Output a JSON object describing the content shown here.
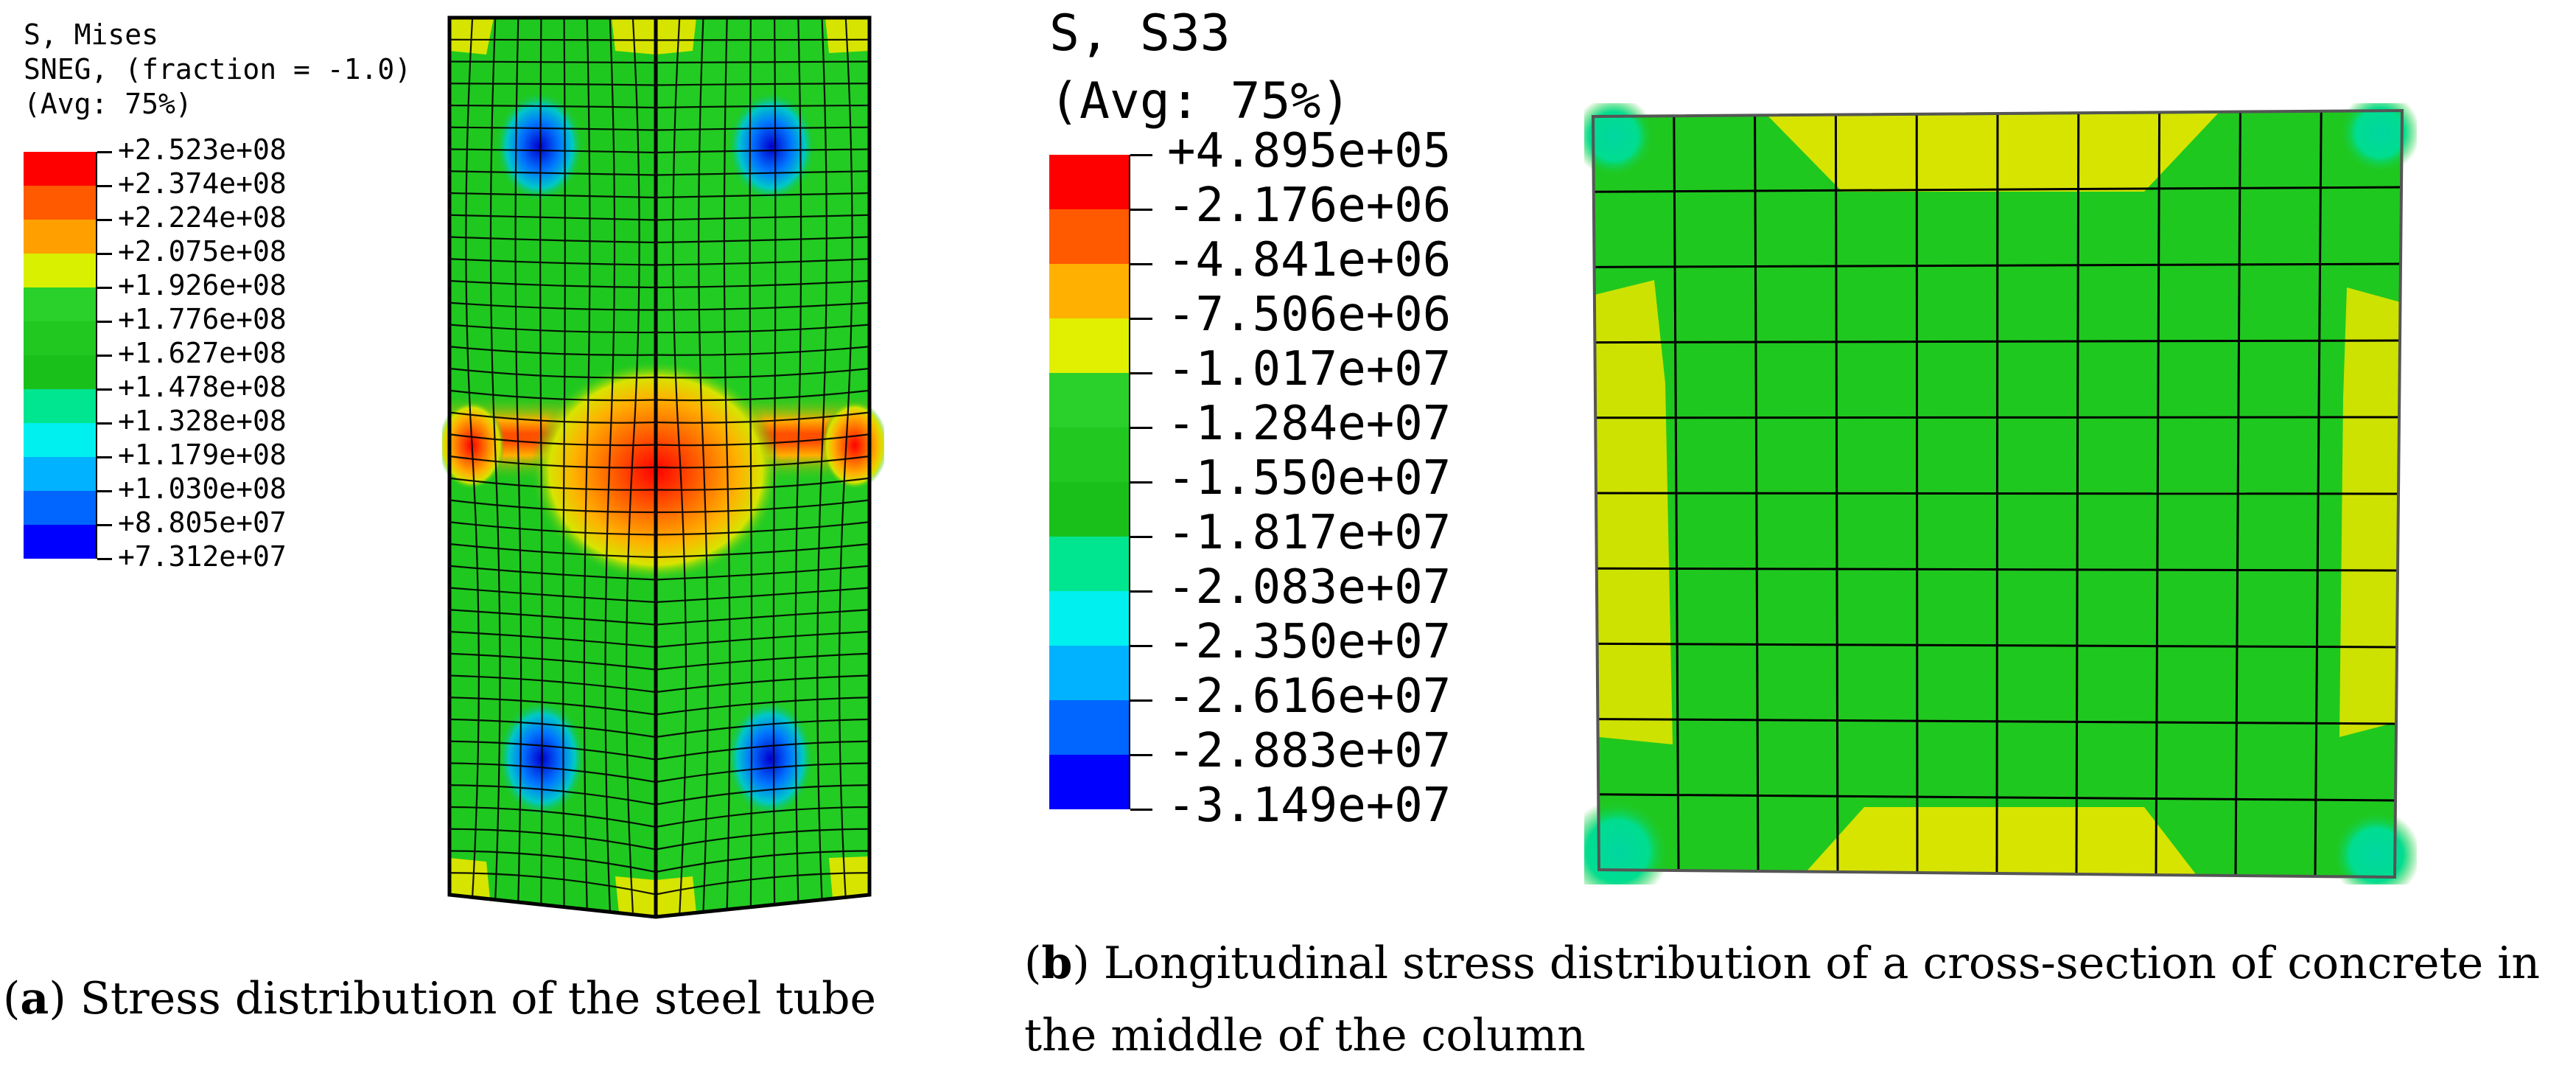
{
  "panel_a": {
    "legend": {
      "title_lines": [
        "S, Mises",
        "SNEG, (fraction = -1.0)",
        "(Avg: 75%)"
      ],
      "labels": [
        "+2.523e+08",
        "+2.374e+08",
        "+2.224e+08",
        "+2.075e+08",
        "+1.926e+08",
        "+1.776e+08",
        "+1.627e+08",
        "+1.478e+08",
        "+1.328e+08",
        "+1.179e+08",
        "+1.030e+08",
        "+8.805e+07",
        "+7.312e+07"
      ],
      "colors": [
        "#ff0000",
        "#ff5a00",
        "#ffa000",
        "#d9f000",
        "#2ad12a",
        "#20c820",
        "#1ac01a",
        "#00e58f",
        "#00f0f0",
        "#00b2ff",
        "#0066ff",
        "#0000ff"
      ]
    },
    "caption": {
      "letter": "a",
      "text": ") Stress distribution of the steel tube"
    }
  },
  "panel_b": {
    "legend": {
      "title_lines": [
        "S, S33",
        "(Avg: 75%)"
      ],
      "labels": [
        "+4.895e+05",
        "-2.176e+06",
        "-4.841e+06",
        "-7.506e+06",
        "-1.017e+07",
        "-1.284e+07",
        "-1.550e+07",
        "-1.817e+07",
        "-2.083e+07",
        "-2.350e+07",
        "-2.616e+07",
        "-2.883e+07",
        "-3.149e+07"
      ],
      "colors": [
        "#ff0000",
        "#ff5a00",
        "#ffb000",
        "#e1f000",
        "#2ad12a",
        "#20c820",
        "#1ac01a",
        "#00e58f",
        "#00f0f0",
        "#00b2ff",
        "#0066ff",
        "#0000ff"
      ]
    },
    "caption": {
      "letter": "b",
      "line1": ") Longitudinal stress distribution of a cross-section of concrete in",
      "line2": "the middle of the column"
    }
  },
  "colors": {
    "mesh_green": "#1fc81f",
    "line_black": "#000000",
    "yellow": "#d7e400",
    "teal": "#00dd99",
    "blue": "#0055ff",
    "deep_blue": "#0000cc",
    "red": "#ff1a00",
    "orange": "#ff8c00"
  }
}
